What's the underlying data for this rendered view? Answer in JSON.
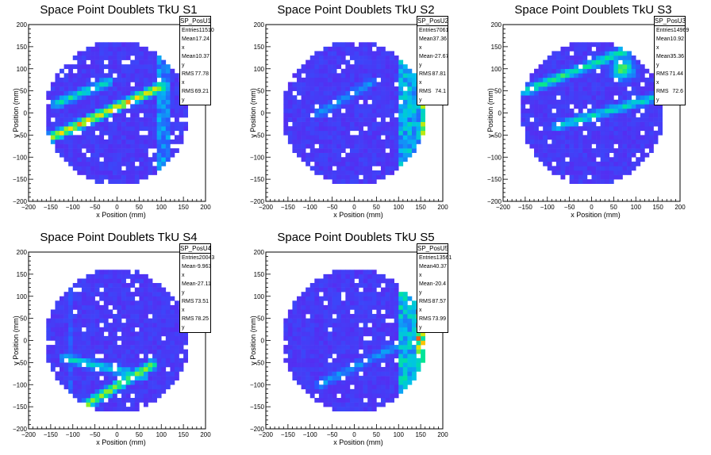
{
  "chart_data": [
    {
      "type": "heatmap",
      "title": "Space Point Doublets TkU S1",
      "xlabel": "x Position (mm)",
      "ylabel": "y Position (mm)",
      "xlim": [
        -200,
        200
      ],
      "ylim": [
        -200,
        200
      ],
      "xticks": [
        "−200",
        "−150",
        "−100",
        "−50",
        "0",
        "50",
        "100",
        "150",
        "200"
      ],
      "yticks": [
        "−200",
        "−150",
        "−100",
        "−50",
        "0",
        "50",
        "100",
        "150",
        "200"
      ],
      "stats": {
        "name": "SP_PosU1",
        "rows": [
          {
            "k": "Entries",
            "v": "11510"
          },
          {
            "k": "Mean x",
            "v": "17.24"
          },
          {
            "k": "Mean y",
            "v": "10.37"
          },
          {
            "k": "RMS x",
            "v": "77.78"
          },
          {
            "k": "RMS y",
            "v": "69.21"
          }
        ]
      },
      "features": [
        {
          "shape": "band",
          "p1": [
            -160,
            -60
          ],
          "p2": [
            100,
            60
          ],
          "level": 0.85
        },
        {
          "shape": "band",
          "p1": [
            -140,
            20
          ],
          "p2": [
            -20,
            70
          ],
          "level": 0.55
        },
        {
          "shape": "strip",
          "x": [
            95,
            115
          ],
          "level": 0.45
        }
      ]
    },
    {
      "type": "heatmap",
      "title": "Space Point Doublets TkU S2",
      "xlabel": "x Position (mm)",
      "ylabel": "y Position (mm)",
      "xlim": [
        -200,
        200
      ],
      "ylim": [
        -200,
        200
      ],
      "xticks": [
        "−200",
        "−150",
        "−100",
        "−50",
        "0",
        "50",
        "100",
        "150",
        "200"
      ],
      "yticks": [
        "−200",
        "−150",
        "−100",
        "−50",
        "0",
        "50",
        "100",
        "150",
        "200"
      ],
      "stats": {
        "name": "SP_PosU2",
        "rows": [
          {
            "k": "Entries",
            "v": "7061"
          },
          {
            "k": "Mean x",
            "v": "37.36"
          },
          {
            "k": "Mean y",
            "v": "-27.67"
          },
          {
            "k": "RMS x",
            "v": "87.81"
          },
          {
            "k": "RMS y",
            "v": "74.1"
          }
        ]
      },
      "features": [
        {
          "shape": "strip",
          "x": [
            100,
            160
          ],
          "level": 0.55
        },
        {
          "shape": "strip",
          "x": [
            150,
            162
          ],
          "level": 1.0
        },
        {
          "shape": "band",
          "p1": [
            -80,
            0
          ],
          "p2": [
            40,
            70
          ],
          "level": 0.35
        }
      ]
    },
    {
      "type": "heatmap",
      "title": "Space Point Doublets TkU S3",
      "xlabel": "x Position (mm)",
      "ylabel": "y Position (mm)",
      "xlim": [
        -200,
        200
      ],
      "ylim": [
        -200,
        200
      ],
      "xticks": [
        "−200",
        "−150",
        "−100",
        "−50",
        "0",
        "50",
        "100",
        "150",
        "200"
      ],
      "yticks": [
        "−200",
        "−150",
        "−100",
        "−50",
        "0",
        "50",
        "100",
        "150",
        "200"
      ],
      "stats": {
        "name": "SP_PosU3",
        "rows": [
          {
            "k": "Entries",
            "v": "14969"
          },
          {
            "k": "Mean x",
            "v": "10.92"
          },
          {
            "k": "Mean y",
            "v": "35.36"
          },
          {
            "k": "RMS x",
            "v": "71.44"
          },
          {
            "k": "RMS y",
            "v": "72.6"
          }
        ]
      },
      "features": [
        {
          "shape": "band",
          "p1": [
            -150,
            50
          ],
          "p2": [
            100,
            150
          ],
          "level": 0.6
        },
        {
          "shape": "band",
          "p1": [
            -80,
            -30
          ],
          "p2": [
            160,
            40
          ],
          "level": 0.5
        },
        {
          "shape": "blob",
          "c": [
            70,
            100
          ],
          "r": 40,
          "level": 0.75
        }
      ]
    },
    {
      "type": "heatmap",
      "title": "Space Point Doublets TkU S4",
      "xlabel": "x Position (mm)",
      "ylabel": "y Position (mm)",
      "xlim": [
        -200,
        200
      ],
      "ylim": [
        -200,
        200
      ],
      "xticks": [
        "−200",
        "−150",
        "−100",
        "−50",
        "0",
        "50",
        "100",
        "150",
        "200"
      ],
      "yticks": [
        "−200",
        "−150",
        "−100",
        "−50",
        "0",
        "50",
        "100",
        "150",
        "200"
      ],
      "stats": {
        "name": "SP_PosU4",
        "rows": [
          {
            "k": "Entries",
            "v": "20043"
          },
          {
            "k": "Mean x",
            "v": "-9.963"
          },
          {
            "k": "Mean y",
            "v": "-27.11"
          },
          {
            "k": "RMS x",
            "v": "73.51"
          },
          {
            "k": "RMS y",
            "v": "78.25"
          }
        ]
      },
      "features": [
        {
          "shape": "band",
          "p1": [
            -120,
            -40
          ],
          "p2": [
            60,
            -80
          ],
          "level": 0.5
        },
        {
          "shape": "band",
          "p1": [
            -70,
            -145
          ],
          "p2": [
            80,
            -55
          ],
          "level": 0.75
        },
        {
          "shape": "strip",
          "x": [
            -110,
            -100
          ],
          "level": 0.3
        }
      ]
    },
    {
      "type": "heatmap",
      "title": "Space Point Doublets TkU S5",
      "xlabel": "x Position (mm)",
      "ylabel": "y Position (mm)",
      "xlim": [
        -200,
        200
      ],
      "ylim": [
        -200,
        200
      ],
      "xticks": [
        "−200",
        "−150",
        "−100",
        "−50",
        "0",
        "50",
        "100",
        "150",
        "200"
      ],
      "yticks": [
        "−200",
        "−150",
        "−100",
        "−50",
        "0",
        "50",
        "100",
        "150",
        "200"
      ],
      "stats": {
        "name": "SP_PosU5",
        "rows": [
          {
            "k": "Entries",
            "v": "13561"
          },
          {
            "k": "Mean x",
            "v": "40.37"
          },
          {
            "k": "Mean y",
            "v": "-20.4"
          },
          {
            "k": "RMS x",
            "v": "87.57"
          },
          {
            "k": "RMS y",
            "v": "73.99"
          }
        ]
      },
      "features": [
        {
          "shape": "strip",
          "x": [
            100,
            160
          ],
          "level": 0.6
        },
        {
          "shape": "strip",
          "x": [
            140,
            160
          ],
          "level": 1.0
        },
        {
          "shape": "band",
          "p1": [
            -80,
            -100
          ],
          "p2": [
            100,
            -10
          ],
          "level": 0.35
        }
      ]
    }
  ]
}
